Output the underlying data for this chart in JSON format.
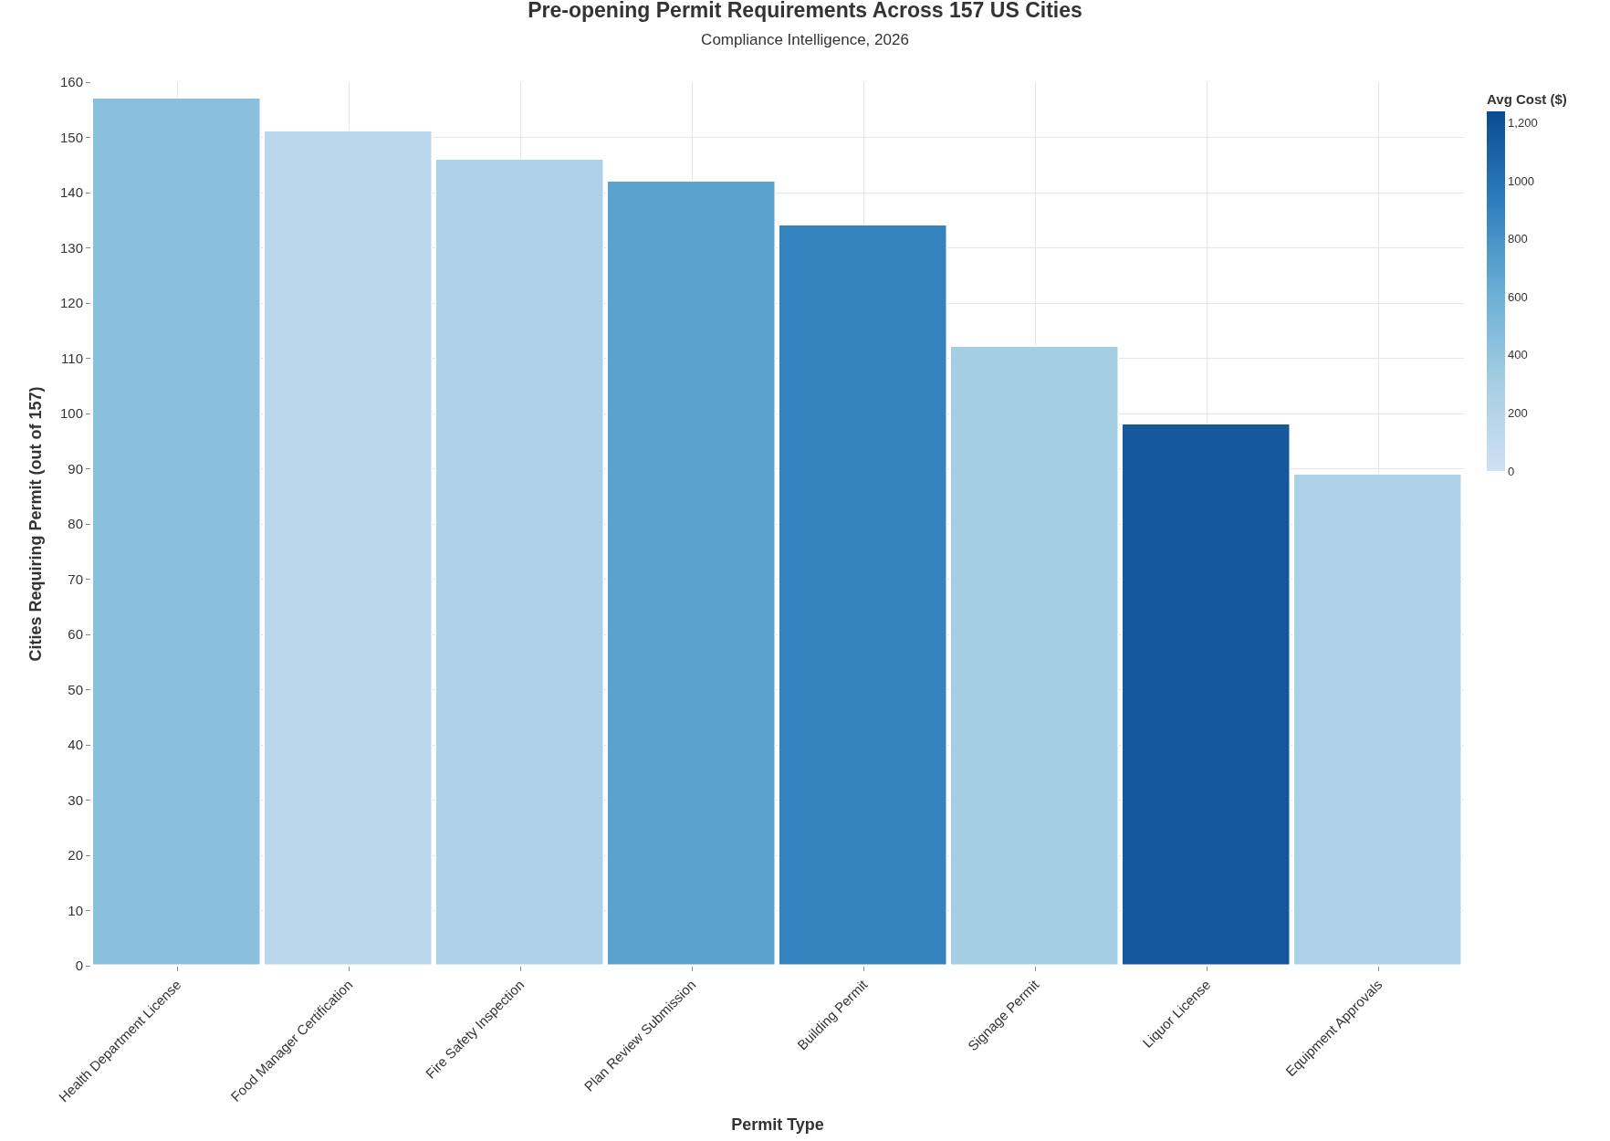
{
  "chart_data": {
    "type": "bar",
    "title": "Pre-opening Permit Requirements Across 157 US Cities",
    "subtitle": "Compliance Intelligence, 2026",
    "xlabel": "Permit Type",
    "ylabel": "Cities Requiring Permit (out of 157)",
    "clabel": "Avg Cost ($)",
    "categories": [
      "Health Department License",
      "Food Manager Certification",
      "Fire Safety Inspection",
      "Plan Review Submission",
      "Building Permit",
      "Signage Permit",
      "Liquor License",
      "Equipment Approvals"
    ],
    "values": [
      157,
      151,
      146,
      142,
      134,
      112,
      98,
      89
    ],
    "cvalues": [
      450,
      150,
      250,
      700,
      900,
      300,
      1150,
      250
    ],
    "clim": [
      0,
      1240
    ],
    "cticks": [
      0,
      200,
      400,
      600,
      800,
      1000,
      {
        "value": 1200,
        "label": "1,200"
      }
    ],
    "ylim": [
      0,
      160
    ],
    "yticks": [
      0,
      10,
      20,
      30,
      40,
      50,
      60,
      70,
      80,
      90,
      100,
      110,
      120,
      130,
      140,
      150,
      160
    ],
    "grid": true
  }
}
